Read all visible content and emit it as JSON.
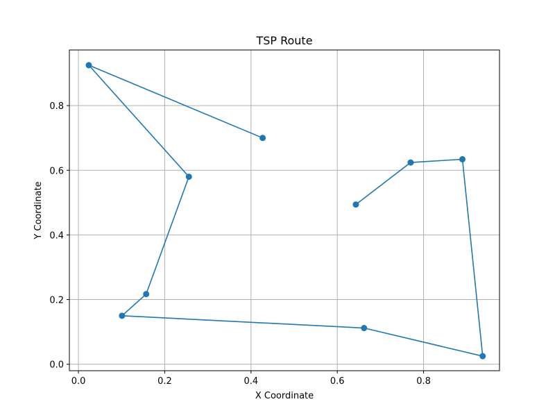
{
  "chart_data": {
    "type": "line",
    "title": "TSP Route",
    "xlabel": "X Coordinate",
    "ylabel": "Y Coordinate",
    "xlim": [
      -0.021,
      0.976
    ],
    "ylim": [
      -0.02,
      0.972
    ],
    "xticks": [
      0.0,
      0.2,
      0.4,
      0.6,
      0.8
    ],
    "xtick_labels": [
      "0.0",
      "0.2",
      "0.4",
      "0.6",
      "0.8"
    ],
    "yticks": [
      0.0,
      0.2,
      0.4,
      0.6,
      0.8
    ],
    "ytick_labels": [
      "0.0",
      "0.2",
      "0.4",
      "0.6",
      "0.8"
    ],
    "grid": true,
    "legend": false,
    "color": "#1f77b4",
    "series": [
      {
        "x": [
          0.643,
          0.77,
          0.89,
          0.937,
          0.662,
          0.101,
          0.157,
          0.256,
          0.024,
          0.427
        ],
        "y": [
          0.494,
          0.624,
          0.634,
          0.025,
          0.112,
          0.15,
          0.217,
          0.58,
          0.925,
          0.7
        ],
        "marker": "circle"
      }
    ]
  }
}
